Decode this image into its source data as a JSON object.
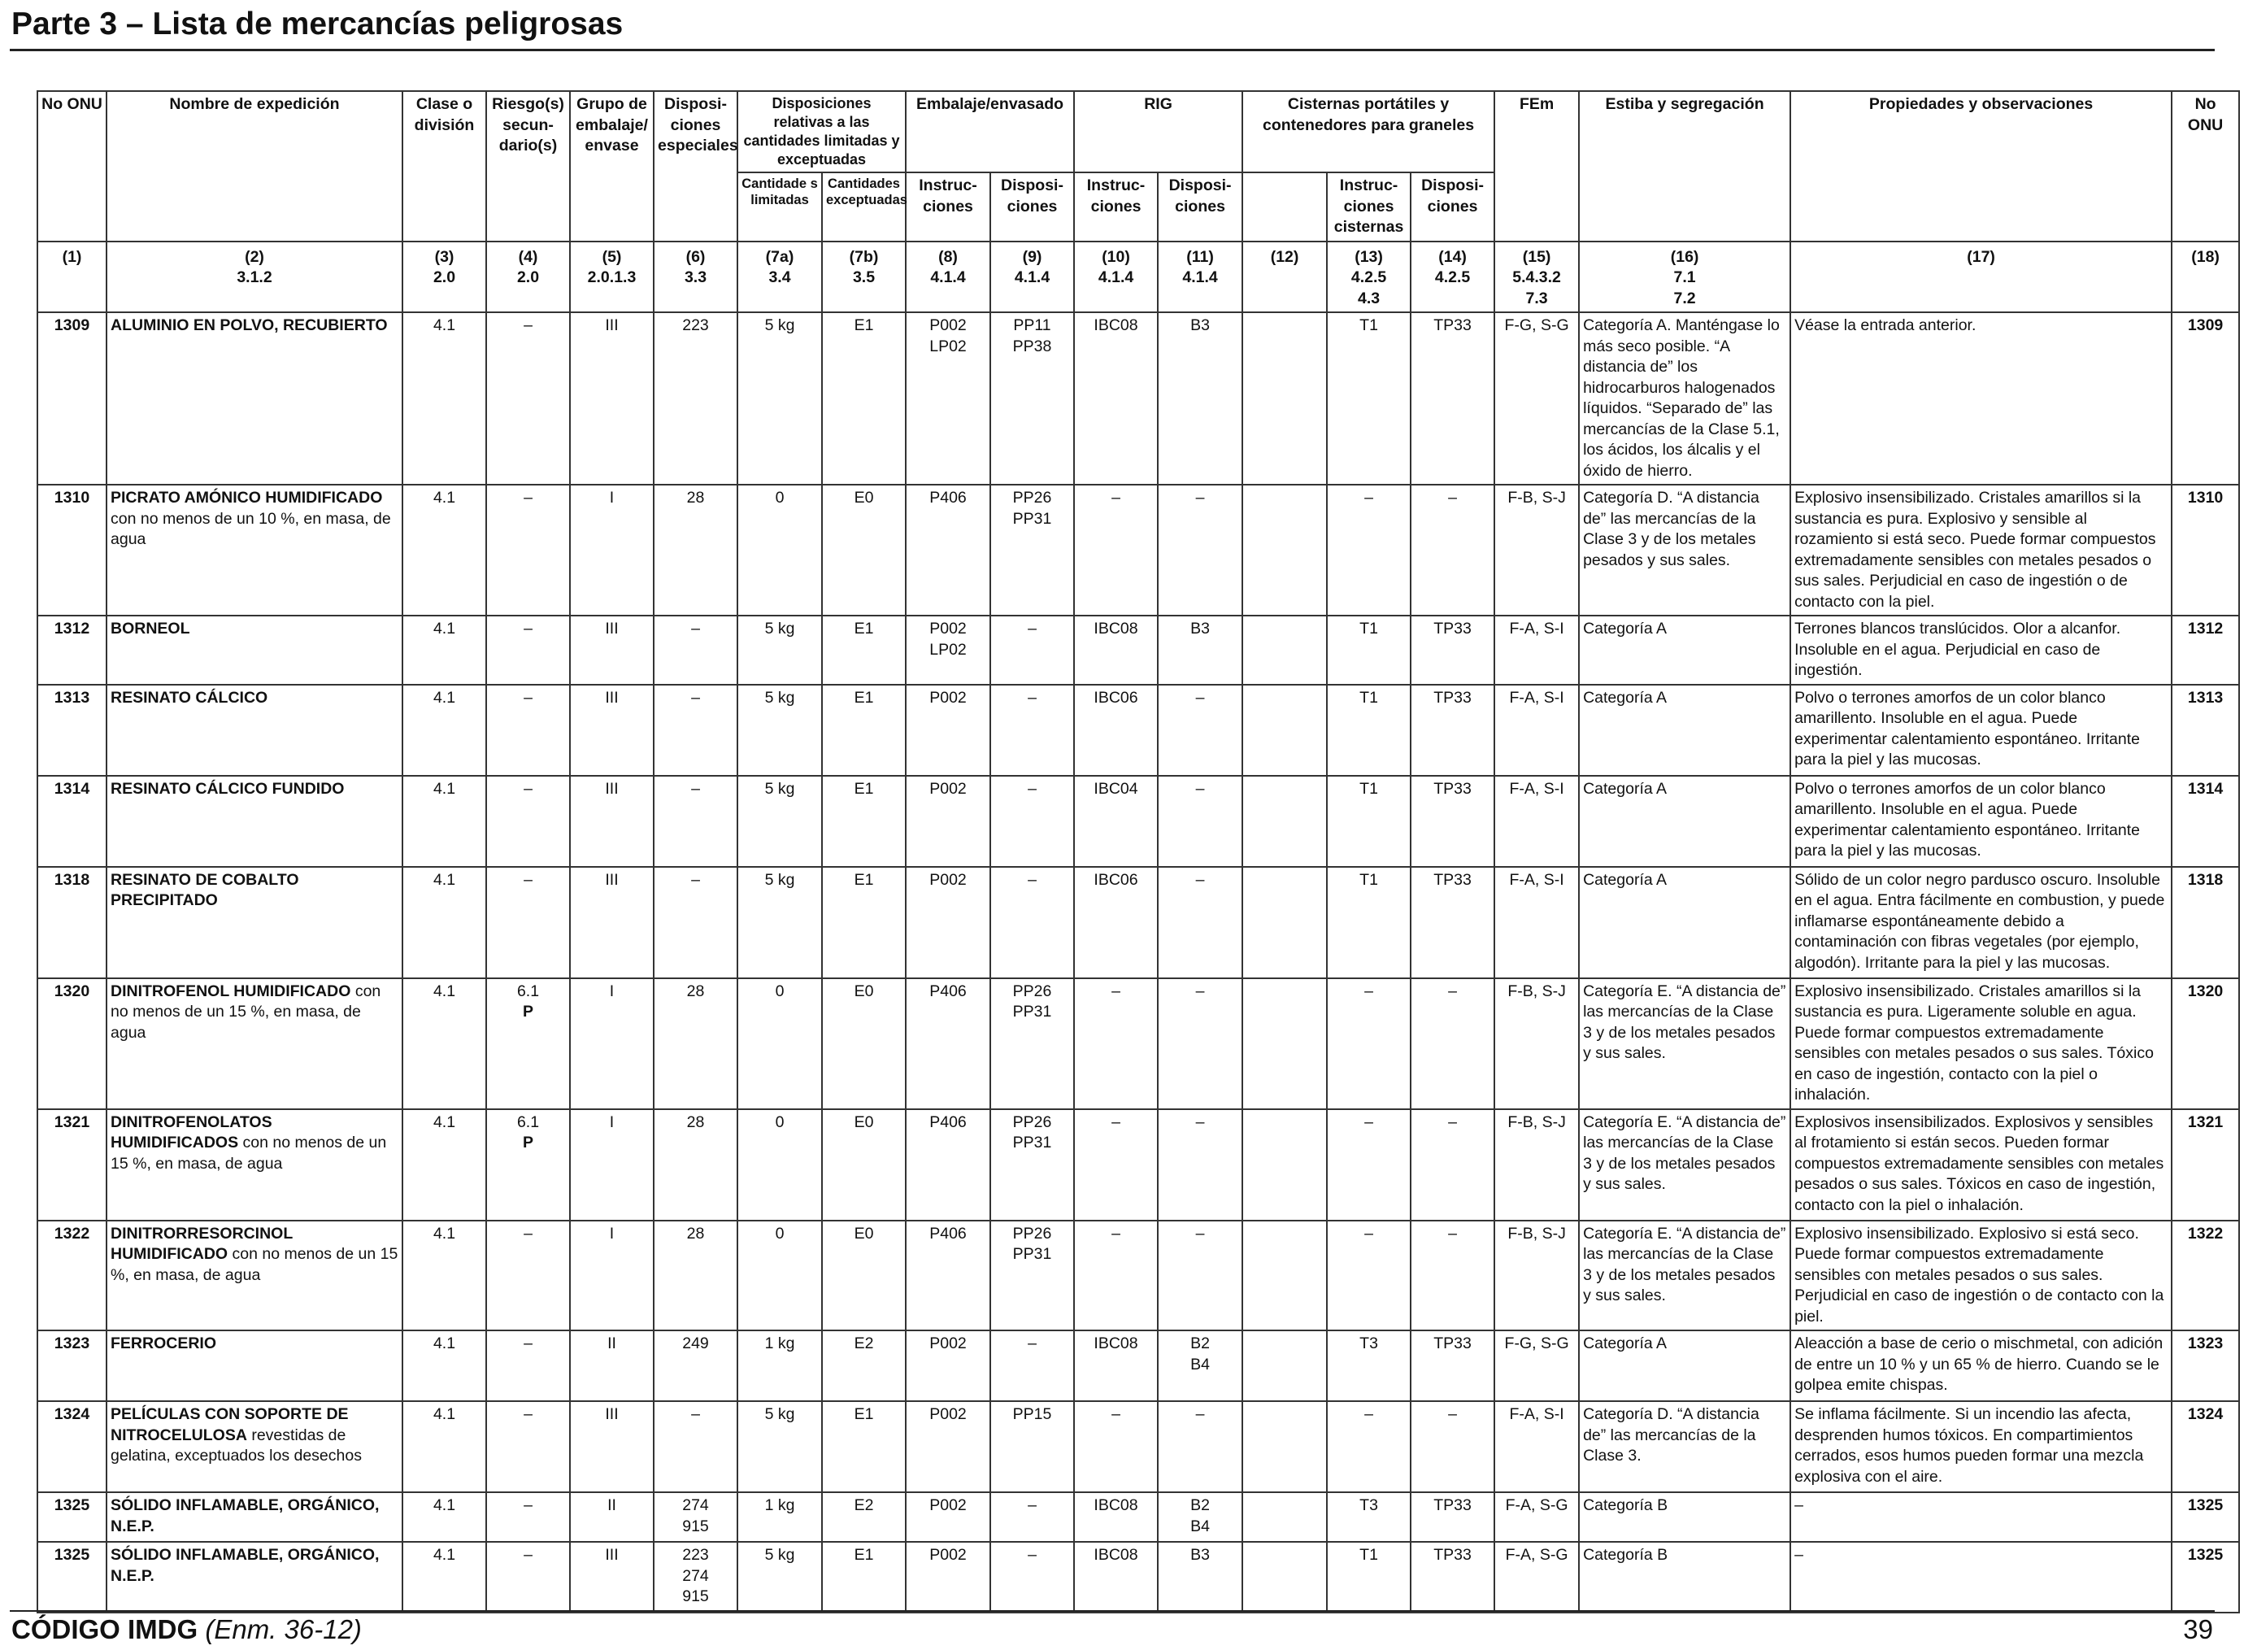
{
  "title": "Parte 3 – Lista de mercancías peligrosas",
  "footer": {
    "code": "CÓDIGO IMDG",
    "amendment": "(Enm. 36-12)",
    "page": "39"
  },
  "headers": {
    "no_onu": "No ONU",
    "nombre": "Nombre de expedición",
    "clase": "Clase o división",
    "riesgo": "Riesgo(s) secun- dario(s)",
    "grupo": "Grupo de embalaje/ envase",
    "disposiciones": "Disposi- ciones especiales",
    "limitadas_group": "Disposiciones relativas a las cantidades limitadas y exceptuadas",
    "limitadas": "Cantidade s limitadas",
    "exceptuadas": "Cantidades exceptuadas",
    "embalaje_group": "Embalaje/envasado",
    "emb_instr": "Instruc- ciones",
    "emb_disp": "Disposi- ciones",
    "rig_group": "RIG",
    "rig_instr": "Instruc- ciones",
    "rig_disp": "Disposi- ciones",
    "cisternas_group": "Cisternas portátiles y contenedores para graneles",
    "cis_instr": "Instruc- ciones cisternas",
    "cis_disp": "Disposi- ciones",
    "fem": "FEm",
    "estiba": "Estiba y segregación",
    "propiedades": "Propiedades y observaciones",
    "no_onu_r": "No ONU"
  },
  "refs": [
    [
      "(1)"
    ],
    [
      "(2)",
      "3.1.2"
    ],
    [
      "(3)",
      "2.0"
    ],
    [
      "(4)",
      "2.0"
    ],
    [
      "(5)",
      "2.0.1.3"
    ],
    [
      "(6)",
      "3.3"
    ],
    [
      "(7a)",
      "3.4"
    ],
    [
      "(7b)",
      "3.5"
    ],
    [
      "(8)",
      "4.1.4"
    ],
    [
      "(9)",
      "4.1.4"
    ],
    [
      "(10)",
      "4.1.4"
    ],
    [
      "(11)",
      "4.1.4"
    ],
    [
      "(12)"
    ],
    [
      "(13)",
      "4.2.5",
      "4.3"
    ],
    [
      "(14)",
      "4.2.5"
    ],
    [
      "(15)",
      "5.4.3.2",
      "7.3"
    ],
    [
      "(16)",
      "7.1",
      "7.2"
    ],
    [
      "(17)"
    ],
    [
      "(18)"
    ]
  ],
  "rows": [
    {
      "un": "1309",
      "name_bold": "ALUMINIO EN POLVO, RECUBIERTO",
      "name_rest": "",
      "clase": "4.1",
      "riesgo": [
        "–"
      ],
      "grupo": "III",
      "disp": [
        "223"
      ],
      "lim": "5 kg",
      "exc": "E1",
      "emb_i": [
        "P002",
        "LP02"
      ],
      "emb_d": [
        "PP11",
        "PP38"
      ],
      "rig_i": "IBC08",
      "rig_d": [
        "B3"
      ],
      "c12": "",
      "cis_i": "T1",
      "cis_d": "TP33",
      "fem": "F-G, S-G",
      "estiba": "Categoría A. Manténgase lo más seco posible. “A distancia de” los hidrocarburos halogenados líquidos. “Separado de” las mercancías de la Clase 5.1, los ácidos, los álcalis y el óxido de hierro.",
      "prop": "Véase la entrada anterior."
    },
    {
      "un": "1310",
      "name_bold": "PICRATO AMÓNICO HUMIDIFICADO",
      "name_rest": "con no menos de un 10 %, en masa, de agua",
      "clase": "4.1",
      "riesgo": [
        "–"
      ],
      "grupo": "I",
      "disp": [
        "28"
      ],
      "lim": "0",
      "exc": "E0",
      "emb_i": [
        "P406"
      ],
      "emb_d": [
        "PP26",
        "PP31"
      ],
      "rig_i": "–",
      "rig_d": [
        "–"
      ],
      "c12": "",
      "cis_i": "–",
      "cis_d": "–",
      "fem": "F-B, S-J",
      "estiba": "Categoría D. “A distancia de” las mercancías de la Clase 3 y de los metales pesados y sus sales.",
      "prop": "Explosivo insensibilizado. Cristales amarillos si la sustancia es pura. Explosivo y sensible al rozamiento si está seco. Puede formar compuestos extremadamente sensibles con metales pesados o sus sales. Perjudicial en caso de ingestión o de contacto con la piel."
    },
    {
      "un": "1312",
      "name_bold": "BORNEOL",
      "name_rest": "",
      "clase": "4.1",
      "riesgo": [
        "–"
      ],
      "grupo": "III",
      "disp": [
        "–"
      ],
      "lim": "5 kg",
      "exc": "E1",
      "emb_i": [
        "P002",
        "LP02"
      ],
      "emb_d": [
        "–"
      ],
      "rig_i": "IBC08",
      "rig_d": [
        "B3"
      ],
      "c12": "",
      "cis_i": "T1",
      "cis_d": "TP33",
      "fem": "F-A, S-I",
      "estiba": "Categoría A",
      "prop": "Terrones blancos translúcidos. Olor a alcanfor. Insoluble en el agua. Perjudicial en caso de ingestión."
    },
    {
      "un": "1313",
      "name_bold": "RESINATO CÁLCICO",
      "name_rest": "",
      "clase": "4.1",
      "riesgo": [
        "–"
      ],
      "grupo": "III",
      "disp": [
        "–"
      ],
      "lim": "5 kg",
      "exc": "E1",
      "emb_i": [
        "P002"
      ],
      "emb_d": [
        "–"
      ],
      "rig_i": "IBC06",
      "rig_d": [
        "–"
      ],
      "c12": "",
      "cis_i": "T1",
      "cis_d": "TP33",
      "fem": "F-A, S-I",
      "estiba": "Categoría A",
      "prop": "Polvo o terrones amorfos de un color blanco amarillento. Insoluble en el agua. Puede experimentar calentamiento espontáneo. Irritante para la piel y las mucosas."
    },
    {
      "un": "1314",
      "name_bold": "RESINATO CÁLCICO FUNDIDO",
      "name_rest": "",
      "clase": "4.1",
      "riesgo": [
        "–"
      ],
      "grupo": "III",
      "disp": [
        "–"
      ],
      "lim": "5 kg",
      "exc": "E1",
      "emb_i": [
        "P002"
      ],
      "emb_d": [
        "–"
      ],
      "rig_i": "IBC04",
      "rig_d": [
        "–"
      ],
      "c12": "",
      "cis_i": "T1",
      "cis_d": "TP33",
      "fem": "F-A, S-I",
      "estiba": "Categoría A",
      "prop": "Polvo o terrones amorfos de un color blanco amarillento. Insoluble en el agua. Puede experimentar calentamiento espontáneo. Irritante para la piel y las mucosas."
    },
    {
      "un": "1318",
      "name_bold": "RESINATO DE COBALTO PRECIPITADO",
      "name_rest": "",
      "clase": "4.1",
      "riesgo": [
        "–"
      ],
      "grupo": "III",
      "disp": [
        "–"
      ],
      "lim": "5 kg",
      "exc": "E1",
      "emb_i": [
        "P002"
      ],
      "emb_d": [
        "–"
      ],
      "rig_i": "IBC06",
      "rig_d": [
        "–"
      ],
      "c12": "",
      "cis_i": "T1",
      "cis_d": "TP33",
      "fem": "F-A, S-I",
      "estiba": "Categoría A",
      "prop": "Sólido de un color negro pardusco oscuro. Insoluble en el agua. Entra fácilmente en combustion, y puede inflamarse espontáneamente debido a contaminación con fibras vegetales (por ejemplo, algodón). Irritante para la piel y las mucosas."
    },
    {
      "un": "1320",
      "name_bold": "DINITROFENOL HUMIDIFICADO",
      "name_rest": "con no menos de un 15 %, en masa, de agua",
      "clase": "4.1",
      "riesgo": [
        "6.1",
        "P"
      ],
      "grupo": "I",
      "disp": [
        "28"
      ],
      "lim": "0",
      "exc": "E0",
      "emb_i": [
        "P406"
      ],
      "emb_d": [
        "PP26",
        "PP31"
      ],
      "rig_i": "–",
      "rig_d": [
        "–"
      ],
      "c12": "",
      "cis_i": "–",
      "cis_d": "–",
      "fem": "F-B, S-J",
      "estiba": "Categoría E. “A distancia de” las mercancías de la Clase 3 y de los metales pesados y sus sales.",
      "prop": "Explosivo insensibilizado. Cristales amarillos si la sustancia es pura. Ligeramente soluble en agua. Puede formar compuestos extremadamente sensibles con metales pesados o sus sales. Tóxico en caso de ingestión, contacto con la piel o inhalación."
    },
    {
      "un": "1321",
      "name_bold": "DINITROFENOLATOS HUMIDIFICADOS",
      "name_rest": "con no menos de un 15 %, en masa, de agua",
      "clase": "4.1",
      "riesgo": [
        "6.1",
        "P"
      ],
      "grupo": "I",
      "disp": [
        "28"
      ],
      "lim": "0",
      "exc": "E0",
      "emb_i": [
        "P406"
      ],
      "emb_d": [
        "PP26",
        "PP31"
      ],
      "rig_i": "–",
      "rig_d": [
        "–"
      ],
      "c12": "",
      "cis_i": "–",
      "cis_d": "–",
      "fem": "F-B, S-J",
      "estiba": "Categoría E. “A distancia de” las mercancías de la Clase 3 y de los metales pesados y sus sales.",
      "prop": "Explosivos insensibilizados. Explosivos y sensibles al frotamiento si están secos. Pueden formar compuestos extremadamente sensibles con metales pesados o sus sales. Tóxicos en caso de ingestión, contacto con la piel o inhalación."
    },
    {
      "un": "1322",
      "name_bold": "DINITRORRESORCINOL HUMIDIFICADO",
      "name_rest": "con no menos de un 15 %, en masa, de agua",
      "clase": "4.1",
      "riesgo": [
        "–"
      ],
      "grupo": "I",
      "disp": [
        "28"
      ],
      "lim": "0",
      "exc": "E0",
      "emb_i": [
        "P406"
      ],
      "emb_d": [
        "PP26",
        "PP31"
      ],
      "rig_i": "–",
      "rig_d": [
        "–"
      ],
      "c12": "",
      "cis_i": "–",
      "cis_d": "–",
      "fem": "F-B, S-J",
      "estiba": "Categoría E. “A distancia de” las mercancías de la Clase 3 y de los metales pesados y sus sales.",
      "prop": "Explosivo insensibilizado. Explosivo si está seco. Puede formar compuestos extremadamente sensibles con metales pesados o sus sales. Perjudicial en caso de ingestión o de contacto con la piel."
    },
    {
      "un": "1323",
      "name_bold": "FERROCERIO",
      "name_rest": "",
      "clase": "4.1",
      "riesgo": [
        "–"
      ],
      "grupo": "II",
      "disp": [
        "249"
      ],
      "lim": "1 kg",
      "exc": "E2",
      "emb_i": [
        "P002"
      ],
      "emb_d": [
        "–"
      ],
      "rig_i": "IBC08",
      "rig_d": [
        "B2",
        "B4"
      ],
      "c12": "",
      "cis_i": "T3",
      "cis_d": "TP33",
      "fem": "F-G, S-G",
      "estiba": "Categoría A",
      "prop": "Aleacción a base de cerio o mischmetal, con adición de entre un 10 % y un 65 % de hierro. Cuando se le golpea emite chispas."
    },
    {
      "un": "1324",
      "name_bold": "PELÍCULAS CON SOPORTE DE NITROCELULOSA",
      "name_rest": "revestidas de gelatina, exceptuados los desechos",
      "clase": "4.1",
      "riesgo": [
        "–"
      ],
      "grupo": "III",
      "disp": [
        "–"
      ],
      "lim": "5 kg",
      "exc": "E1",
      "emb_i": [
        "P002"
      ],
      "emb_d": [
        "PP15"
      ],
      "rig_i": "–",
      "rig_d": [
        "–"
      ],
      "c12": "",
      "cis_i": "–",
      "cis_d": "–",
      "fem": "F-A, S-I",
      "estiba": "Categoría D. “A distancia de” las mercancías de la Clase 3.",
      "prop": "Se inflama fácilmente. Si un incendio las afecta, desprenden humos tóxicos. En compartimientos cerrados, esos humos pueden formar una mezcla explosiva con el aire."
    },
    {
      "un": "1325",
      "name_bold": "SÓLIDO INFLAMABLE, ORGÁNICO, N.E.P.",
      "name_rest": "",
      "clase": "4.1",
      "riesgo": [
        "–"
      ],
      "grupo": "II",
      "disp": [
        "274",
        "915"
      ],
      "lim": "1 kg",
      "exc": "E2",
      "emb_i": [
        "P002"
      ],
      "emb_d": [
        "–"
      ],
      "rig_i": "IBC08",
      "rig_d": [
        "B2",
        "B4"
      ],
      "c12": "",
      "cis_i": "T3",
      "cis_d": "TP33",
      "fem": "F-A, S-G",
      "estiba": "Categoría B",
      "prop": "–"
    },
    {
      "un": "1325",
      "name_bold": "SÓLIDO INFLAMABLE, ORGÁNICO, N.E.P.",
      "name_rest": "",
      "clase": "4.1",
      "riesgo": [
        "–"
      ],
      "grupo": "III",
      "disp": [
        "223",
        "274",
        "915"
      ],
      "lim": "5 kg",
      "exc": "E1",
      "emb_i": [
        "P002"
      ],
      "emb_d": [
        "–"
      ],
      "rig_i": "IBC08",
      "rig_d": [
        "B3"
      ],
      "c12": "",
      "cis_i": "T1",
      "cis_d": "TP33",
      "fem": "F-A, S-G",
      "estiba": "Categoría B",
      "prop": "–"
    }
  ]
}
